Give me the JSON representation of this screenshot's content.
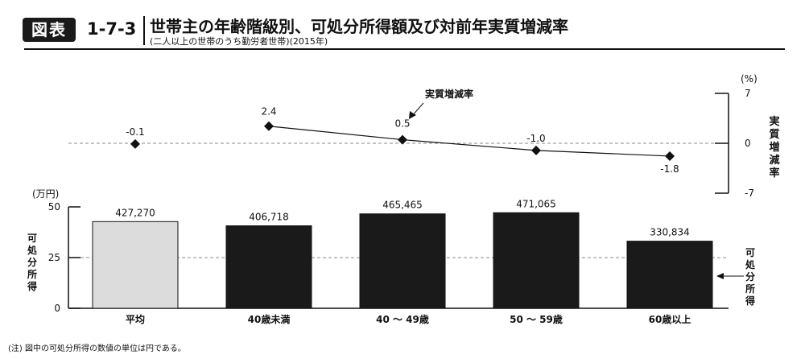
{
  "header": {
    "badge": "図表",
    "number": "1-7-3",
    "title": "世帯主の年齢階級別、可処分所得額及び対前年実質増減率",
    "subtitle": "(二人以上の世帯のうち勤労者世帯)(2015年)"
  },
  "note": "(注) 図中の可処分所得の数値の単位は円である。",
  "colors": {
    "bar_average": "#dcdcdc",
    "bar": "#1a1a1a",
    "line": "#111111",
    "grid": "#888888"
  },
  "chart_data": [
    {
      "type": "line",
      "categories": [
        "平均",
        "40歳未満",
        "40 〜 49歳",
        "50 〜 59歳",
        "60歳以上"
      ],
      "series": [
        {
          "name": "実質増減率",
          "values": [
            -0.1,
            2.4,
            0.5,
            -1.0,
            -1.8
          ]
        }
      ],
      "value_labels": [
        "-0.1",
        "2.4",
        "0.5",
        "-1.0",
        "-1.8"
      ],
      "line_from_index": 1,
      "unit": "(%)",
      "ylabel": "実質増減率",
      "ylim": [
        -7,
        7
      ],
      "yticks": [
        "7",
        "0",
        "-7"
      ],
      "zero_line": "dashed"
    },
    {
      "type": "bar",
      "categories": [
        "平均",
        "40歳未満",
        "40 〜 49歳",
        "50 〜 59歳",
        "60歳以上"
      ],
      "values": [
        427270,
        406718,
        465465,
        471065,
        330834
      ],
      "value_labels": [
        "427,270",
        "406,718",
        "465,465",
        "471,065",
        "330,834"
      ],
      "unit": "(万円)",
      "ylabel": "可処分所得",
      "ylim": [
        0,
        50
      ],
      "yticks": [
        "50",
        "25",
        "0"
      ],
      "gridline_at": 25,
      "legend_right": "可処分所得"
    }
  ]
}
